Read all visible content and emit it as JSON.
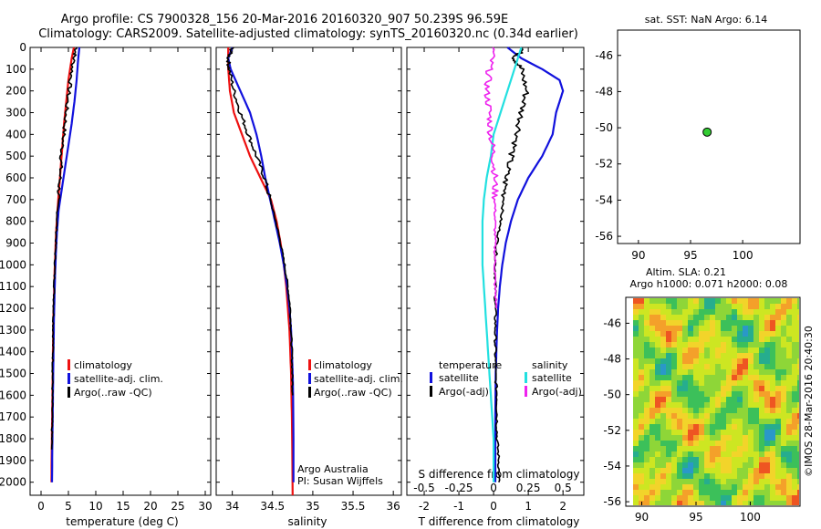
{
  "header": {
    "line1": "Argo profile: CS 7900328_156 20-Mar-2016 20160320_907 50.239S 96.59E",
    "line2": "Climatology: CARS2009. Satellite-adjusted climatology: synTS_20160320.nc (0.34d earlier)"
  },
  "attribution": {
    "line1": "Argo Australia",
    "line2": "PI: Susan Wijffels"
  },
  "watermark": "©IMOS 28-Mar-2016 20:40:30",
  "colors": {
    "climatology": "#ee1111",
    "satellite": "#1111dd",
    "argo": "#000000",
    "salinity_satellite": "#22e0e0",
    "salinity_argo": "#ee22ee",
    "float_marker": "#33cc33"
  },
  "chart_data": [
    {
      "type": "line",
      "panel": "temperature",
      "xlabel": "temperature (deg C)",
      "ylabel": "",
      "xlim": [
        -2,
        31
      ],
      "ylim": [
        2060,
        0
      ],
      "xticks": [
        0,
        5,
        10,
        15,
        20,
        25,
        30
      ],
      "yticks": [
        0,
        100,
        200,
        300,
        400,
        500,
        600,
        700,
        800,
        900,
        1000,
        1100,
        1200,
        1300,
        1400,
        1500,
        1600,
        1700,
        1800,
        1900,
        2000
      ],
      "legend": [
        "climatology",
        "satellite-adj. clim.",
        "Argo(..raw -QC)"
      ],
      "legend_position": "lower-right",
      "series": [
        {
          "name": "climatology",
          "color": "#ee1111",
          "x": [
            6.0,
            5.6,
            5.0,
            4.6,
            4.2,
            3.9,
            3.6,
            3.3,
            3.0,
            2.75,
            2.6,
            2.45,
            2.35,
            2.25,
            2.2,
            2.15,
            2.1,
            2.05,
            2.0,
            1.95,
            1.9
          ],
          "y": [
            0,
            50,
            150,
            250,
            350,
            450,
            550,
            650,
            750,
            850,
            950,
            1050,
            1150,
            1250,
            1350,
            1450,
            1550,
            1650,
            1750,
            1850,
            2000
          ]
        },
        {
          "name": "satellite-adj. clim.",
          "color": "#1111dd",
          "x": [
            7.0,
            6.8,
            6.5,
            6.1,
            5.6,
            5.0,
            4.4,
            3.8,
            3.2,
            2.9,
            2.7,
            2.55,
            2.45,
            2.35,
            2.3,
            2.25,
            2.2,
            2.15,
            2.1,
            2.05,
            2.0
          ],
          "y": [
            0,
            50,
            150,
            250,
            350,
            450,
            550,
            650,
            750,
            850,
            950,
            1050,
            1150,
            1250,
            1350,
            1450,
            1550,
            1650,
            1750,
            1850,
            2000
          ]
        },
        {
          "name": "Argo(..raw -QC)",
          "color": "#000000",
          "x": [
            6.5,
            6.0,
            5.4,
            4.8,
            4.4,
            3.9,
            3.6,
            3.3,
            3.0,
            2.8,
            2.6,
            2.45,
            2.35,
            2.25,
            2.2,
            2.15,
            2.1,
            2.05,
            2.0,
            1.95
          ],
          "y": [
            0,
            50,
            150,
            250,
            350,
            450,
            550,
            650,
            750,
            850,
            950,
            1050,
            1150,
            1250,
            1350,
            1450,
            1550,
            1650,
            1750,
            1850
          ]
        }
      ]
    },
    {
      "type": "line",
      "panel": "salinity",
      "xlabel": "salinity",
      "ylabel": "",
      "xlim": [
        33.8,
        36.1
      ],
      "ylim": [
        2060,
        0
      ],
      "xticks": [
        34,
        34.5,
        35,
        35.5,
        36
      ],
      "legend": [
        "climatology",
        "satellite-adj. clim.",
        "Argo(..raw -QC)"
      ],
      "legend_position": "lower-right",
      "series": [
        {
          "name": "climatology",
          "color": "#ee1111",
          "x": [
            33.95,
            33.95,
            33.97,
            34.02,
            34.12,
            34.22,
            34.35,
            34.48,
            34.55,
            34.6,
            34.64,
            34.67,
            34.69,
            34.71,
            34.72,
            34.73,
            34.735,
            34.74,
            34.745,
            34.75
          ],
          "y": [
            0,
            100,
            200,
            300,
            400,
            500,
            600,
            700,
            800,
            900,
            1000,
            1100,
            1200,
            1300,
            1400,
            1500,
            1600,
            1700,
            1850,
            2060
          ]
        },
        {
          "name": "satellite-adj. clim.",
          "color": "#1111dd",
          "x": [
            34.0,
            33.95,
            33.98,
            34.1,
            34.22,
            34.3,
            34.36,
            34.41,
            34.47,
            34.53,
            34.59,
            34.64,
            34.68,
            34.71,
            34.73,
            34.74,
            34.75,
            34.755,
            34.76,
            34.76
          ],
          "y": [
            0,
            50,
            100,
            200,
            300,
            400,
            500,
            600,
            700,
            800,
            900,
            1000,
            1100,
            1200,
            1300,
            1400,
            1500,
            1600,
            1800,
            2000
          ]
        },
        {
          "name": "Argo(..raw -QC)",
          "color": "#000000",
          "x": [
            34.0,
            33.95,
            33.96,
            34.02,
            34.1,
            34.2,
            34.3,
            34.4,
            34.47,
            34.54,
            34.6,
            34.65,
            34.69,
            34.72,
            34.73,
            34.74,
            34.745,
            34.75
          ],
          "y": [
            0,
            50,
            100,
            200,
            300,
            400,
            500,
            600,
            700,
            800,
            900,
            1000,
            1100,
            1200,
            1300,
            1400,
            1500,
            1600
          ]
        }
      ]
    },
    {
      "type": "line",
      "panel": "difference",
      "xlabel": "T difference from climatology",
      "x2label": "S difference from climatology",
      "xlim": [
        -2.5,
        2.6
      ],
      "x2lim": [
        -0.625,
        0.65
      ],
      "ylim": [
        2060,
        0
      ],
      "xticks": [
        -2,
        -1,
        0,
        1,
        2
      ],
      "x2ticks": [
        -0.5,
        -0.25,
        0,
        0.25,
        0.5
      ],
      "legend_groups": [
        {
          "title": "temperature",
          "items": [
            "satellite",
            "Argo(-adj)"
          ]
        },
        {
          "title": "salinity",
          "items": [
            "satellite",
            "Argo(-adj)"
          ]
        }
      ],
      "legend_position": "lower-right",
      "series": [
        {
          "name": "temperature satellite",
          "color": "#1111dd",
          "x": [
            0.4,
            0.8,
            1.4,
            1.9,
            2.0,
            1.9,
            1.8,
            1.7,
            1.4,
            1.0,
            0.7,
            0.5,
            0.35,
            0.25,
            0.18,
            0.13,
            0.1,
            0.08,
            0.06,
            0.05,
            0.05,
            0.05
          ],
          "y": [
            0,
            50,
            100,
            150,
            200,
            250,
            300,
            400,
            500,
            600,
            700,
            800,
            900,
            1000,
            1100,
            1200,
            1300,
            1400,
            1500,
            1700,
            1900,
            2000
          ]
        },
        {
          "name": "temperature Argo(-adj)",
          "color": "#000000",
          "x": [
            0.9,
            0.6,
            0.8,
            0.95,
            0.8,
            0.7,
            0.5,
            0.35,
            0.3,
            0.2,
            0.1,
            0.05,
            0.05,
            0.05,
            0.05,
            0.05,
            0.05,
            0.1,
            0.1,
            0.1,
            0.15,
            0.15
          ],
          "y": [
            0,
            50,
            100,
            200,
            300,
            400,
            500,
            600,
            700,
            800,
            900,
            1000,
            1100,
            1200,
            1300,
            1400,
            1500,
            1600,
            1700,
            1800,
            1900,
            2000
          ]
        },
        {
          "name": "salinity satellite",
          "color": "#22e0e0",
          "x": [
            0.2,
            0.15,
            0.1,
            0.05,
            0.0,
            -0.02,
            -0.05,
            -0.07,
            -0.08,
            -0.08,
            -0.08,
            -0.07,
            -0.06,
            -0.05,
            -0.04,
            -0.03,
            -0.02,
            -0.01,
            0.0,
            0.0,
            0.0
          ],
          "y": [
            0,
            100,
            200,
            300,
            400,
            500,
            600,
            700,
            800,
            900,
            1000,
            1100,
            1200,
            1300,
            1400,
            1500,
            1600,
            1700,
            1800,
            1900,
            2000
          ]
        },
        {
          "name": "salinity Argo(-adj)",
          "color": "#ee22ee",
          "x": [
            0.0,
            -0.03,
            -0.05,
            -0.03,
            -0.02,
            0.0,
            0.01,
            0.01,
            0.01,
            0.01,
            0.01,
            0.01,
            0.02
          ],
          "y": [
            0,
            100,
            200,
            300,
            400,
            500,
            600,
            700,
            800,
            900,
            1000,
            1100,
            1200
          ]
        }
      ]
    },
    {
      "type": "scatter",
      "panel": "sst",
      "title": "sat. SST: NaN Argo: 6.14",
      "xlim": [
        88,
        105.5
      ],
      "ylim": [
        -56.4,
        -44.6
      ],
      "xticks": [
        90,
        95,
        100
      ],
      "yticks": [
        -46,
        -48,
        -50,
        -52,
        -54,
        -56
      ],
      "series": [
        {
          "name": "",
          "color": "#33cc33",
          "x": [
            96.59
          ],
          "y": [
            -50.24
          ]
        }
      ]
    },
    {
      "type": "heatmap",
      "panel": "sla",
      "title_line1": "Altim. SLA: 0.21",
      "title_line2": "Argo h1000: 0.071 h2000: 0.08",
      "xlim": [
        89.2,
        104.5
      ],
      "ylim": [
        -56.2,
        -44.6
      ],
      "xticks": [
        90,
        95,
        100
      ],
      "yticks": [
        -46,
        -48,
        -50,
        -52,
        -54,
        -56
      ]
    }
  ]
}
